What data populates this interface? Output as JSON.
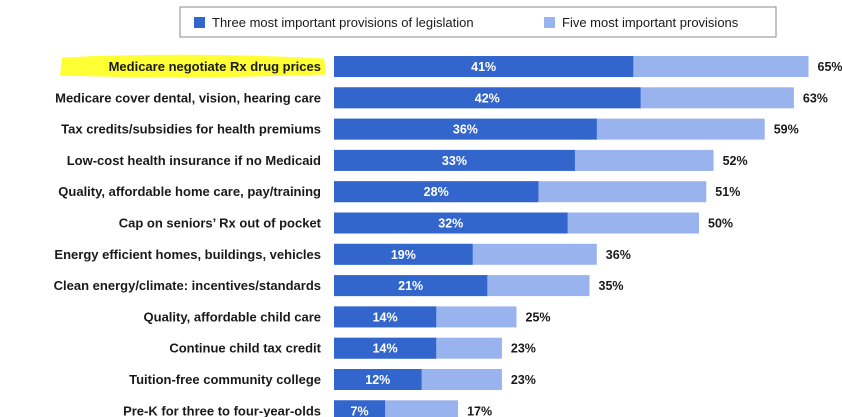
{
  "chart_data": {
    "type": "bar",
    "orientation": "horizontal",
    "title": "",
    "xlabel": "",
    "ylabel": "",
    "xlim": [
      0,
      65
    ],
    "grid": false,
    "legend_position": "top",
    "highlighted_category": "Medicare negotiate Rx drug prices",
    "highlight_color": "#ffff33",
    "categories": [
      "Medicare negotiate Rx drug prices",
      "Medicare cover dental, vision, hearing care",
      "Tax credits/subsidies for health premiums",
      "Low-cost health insurance if no Medicaid",
      "Quality, affordable home care, pay/training",
      "Cap on seniors’ Rx out of pocket",
      "Energy efficient homes, buildings, vehicles",
      "Clean energy/climate: incentives/standards",
      "Quality, affordable child care",
      "Continue child tax credit",
      "Tuition-free community college",
      "Pre-K for three to four-year-olds"
    ],
    "series": [
      {
        "name": "Three most important provisions of legislation",
        "color": "#3366cc",
        "values": [
          41,
          42,
          36,
          33,
          28,
          32,
          19,
          21,
          14,
          14,
          12,
          7
        ],
        "labels": [
          "41%",
          "42%",
          "36%",
          "33%",
          "28%",
          "32%",
          "19%",
          "21%",
          "14%",
          "14%",
          "12%",
          "7%"
        ]
      },
      {
        "name": "Five most important provisions",
        "color": "#99b3ee",
        "values": [
          65,
          63,
          59,
          52,
          51,
          50,
          36,
          35,
          25,
          23,
          23,
          17
        ],
        "labels": [
          "65%",
          "63%",
          "59%",
          "52%",
          "51%",
          "50%",
          "36%",
          "35%",
          "25%",
          "23%",
          "23%",
          "17%"
        ]
      }
    ]
  }
}
